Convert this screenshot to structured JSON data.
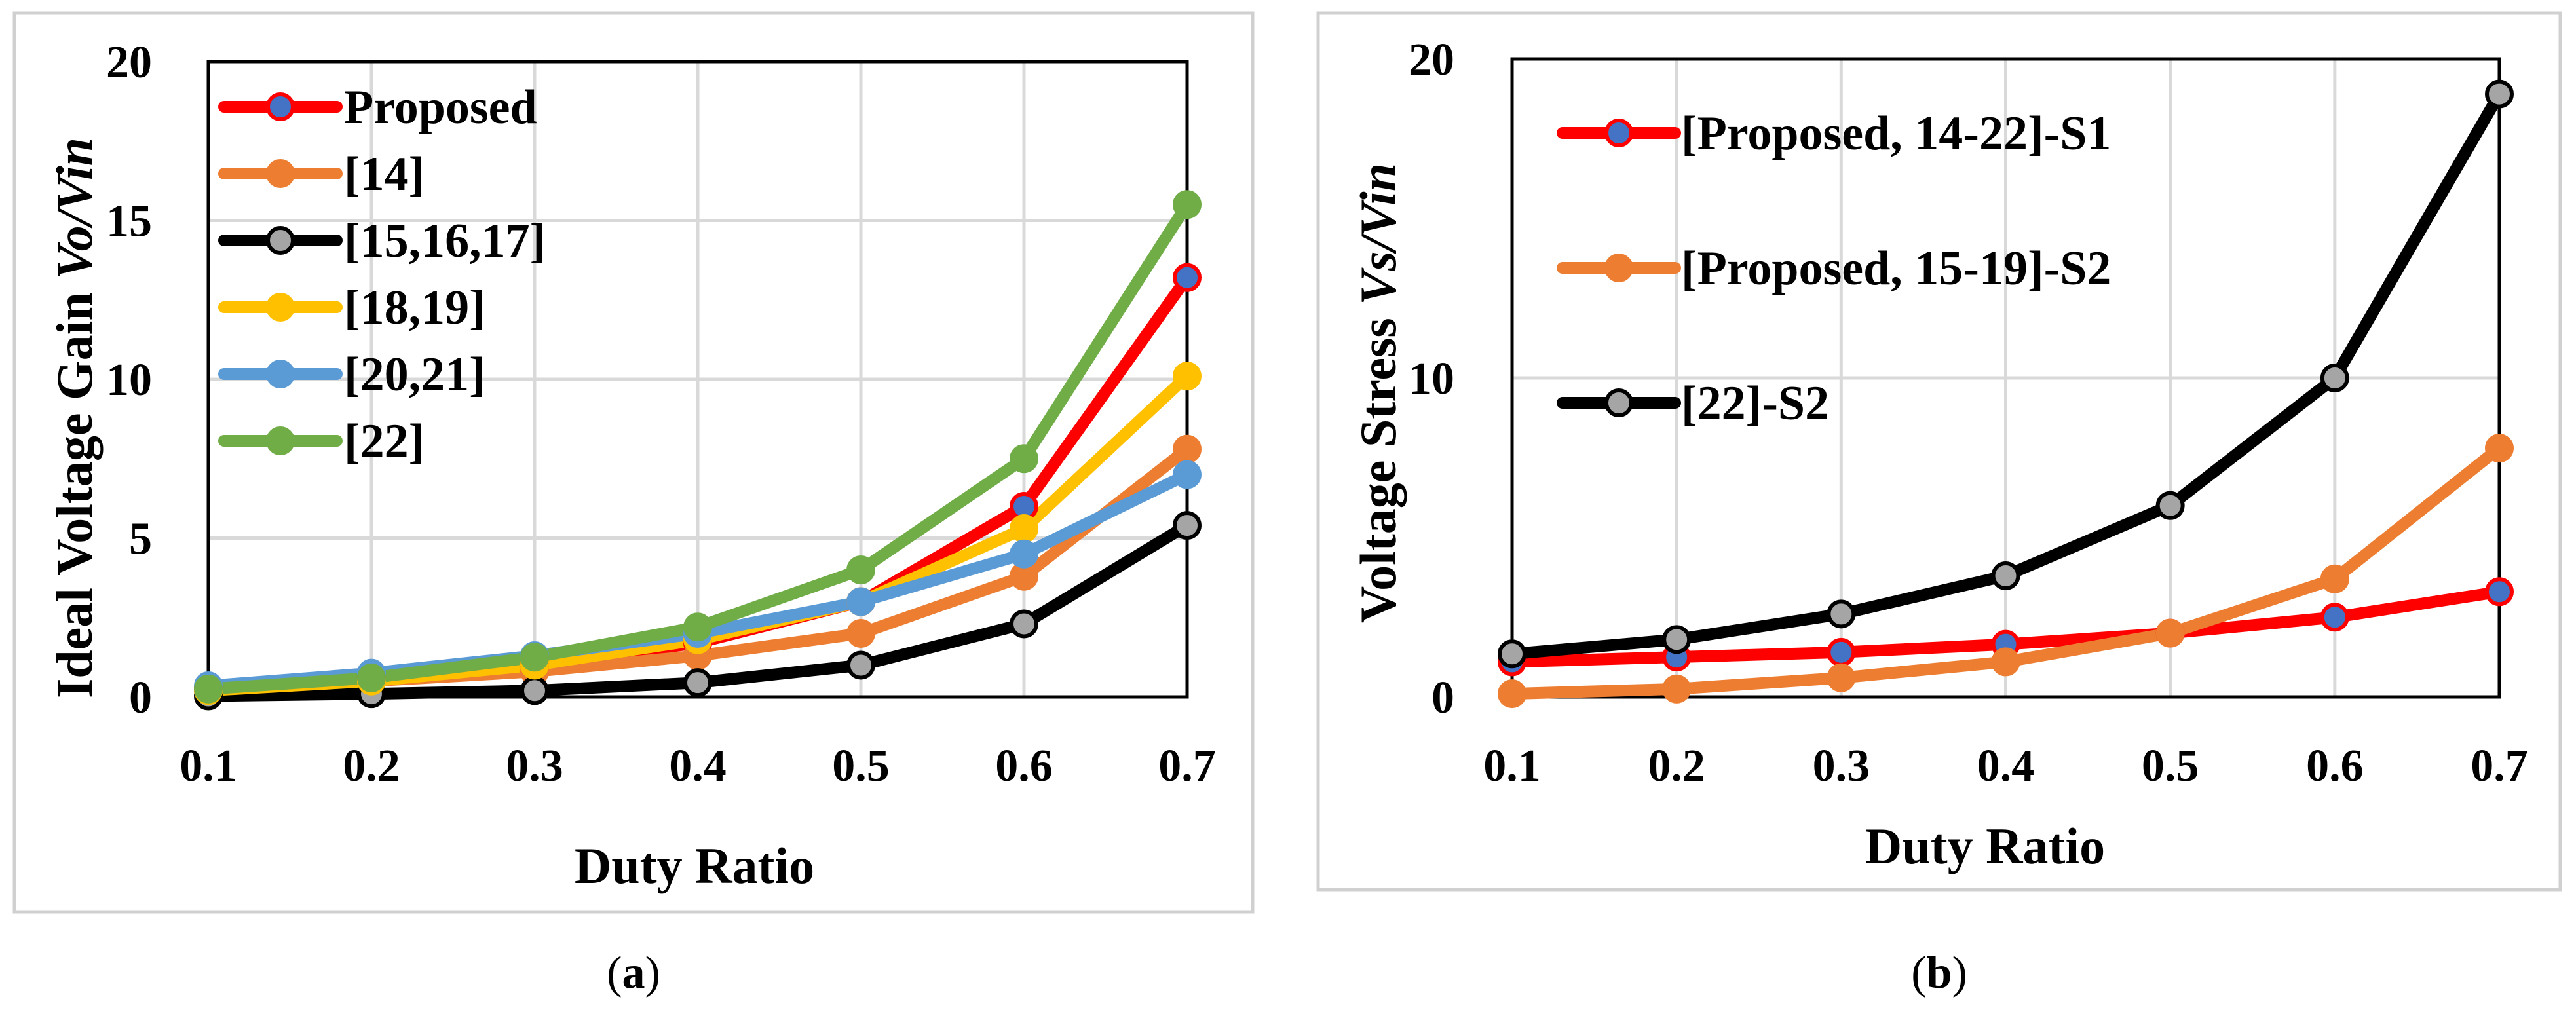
{
  "chart_data": [
    {
      "type": "line",
      "panel_label": [
        "(",
        "a",
        ")"
      ],
      "xlabel": "Duty Ratio",
      "ylabel": [
        "Ideal Voltage Gain ",
        "Vo/Vin"
      ],
      "x": [
        0.1,
        0.2,
        0.3,
        0.4,
        0.5,
        0.6,
        0.7
      ],
      "x_ticks": [
        "0.1",
        "0.2",
        "0.3",
        "0.4",
        "0.5",
        "0.6",
        "0.7"
      ],
      "y_ticks": [
        "0",
        "5",
        "10",
        "15",
        "20"
      ],
      "ylim": [
        0,
        20
      ],
      "grid": true,
      "legend_position": "top-left",
      "series": [
        {
          "name": "Proposed",
          "line_color": "#ff0000",
          "marker_fill": "#4472c4",
          "marker_edge": "#ff0000",
          "values": [
            0.3,
            0.6,
            1.0,
            1.7,
            3.0,
            6.0,
            13.2
          ]
        },
        {
          "name": "[14]",
          "line_color": "#ed7d31",
          "marker_fill": "#ed7d31",
          "marker_edge": "#ed7d31",
          "values": [
            0.2,
            0.5,
            0.8,
            1.3,
            2.0,
            3.8,
            7.8
          ]
        },
        {
          "name": "[15,16,17]",
          "line_color": "#000000",
          "marker_fill": "#a5a5a5",
          "marker_edge": "#000000",
          "values": [
            0.03,
            0.1,
            0.2,
            0.45,
            1.0,
            2.3,
            5.4
          ]
        },
        {
          "name": "[18,19]",
          "line_color": "#ffc000",
          "marker_fill": "#ffc000",
          "marker_edge": "#ffc000",
          "values": [
            0.2,
            0.5,
            1.0,
            1.8,
            3.0,
            5.3,
            10.1
          ]
        },
        {
          "name": "[20,21]",
          "line_color": "#5b9bd5",
          "marker_fill": "#5b9bd5",
          "marker_edge": "#5b9bd5",
          "values": [
            0.35,
            0.75,
            1.3,
            2.0,
            3.0,
            4.5,
            7.0
          ]
        },
        {
          "name": "[22]",
          "line_color": "#70ad47",
          "marker_fill": "#70ad47",
          "marker_edge": "#70ad47",
          "values": [
            0.25,
            0.6,
            1.25,
            2.2,
            4.0,
            7.5,
            15.5
          ]
        }
      ]
    },
    {
      "type": "line",
      "panel_label": [
        "(",
        "b",
        ")"
      ],
      "xlabel": "Duty Ratio",
      "ylabel": [
        "Voltage Stress ",
        "Vs/Vin"
      ],
      "x": [
        0.1,
        0.2,
        0.3,
        0.4,
        0.5,
        0.6,
        0.7
      ],
      "x_ticks": [
        "0.1",
        "0.2",
        "0.3",
        "0.4",
        "0.5",
        "0.6",
        "0.7"
      ],
      "y_ticks": [
        "0",
        "10",
        "20"
      ],
      "ylim": [
        0,
        20
      ],
      "grid": true,
      "legend_position": "top-left",
      "series": [
        {
          "name": "[Proposed, 14-22]-S1",
          "line_color": "#ff0000",
          "marker_fill": "#4472c4",
          "marker_edge": "#ff0000",
          "values": [
            1.1,
            1.25,
            1.4,
            1.65,
            2.0,
            2.5,
            3.3
          ]
        },
        {
          "name": "[Proposed, 15-19]-S2",
          "line_color": "#ed7d31",
          "marker_fill": "#ed7d31",
          "marker_edge": "#ed7d31",
          "values": [
            0.1,
            0.25,
            0.6,
            1.1,
            2.0,
            3.7,
            7.8
          ]
        },
        {
          "name": "[22]-S2",
          "line_color": "#000000",
          "marker_fill": "#a5a5a5",
          "marker_edge": "#000000",
          "values": [
            1.35,
            1.8,
            2.6,
            3.8,
            6.0,
            10.0,
            18.9
          ]
        }
      ]
    }
  ]
}
